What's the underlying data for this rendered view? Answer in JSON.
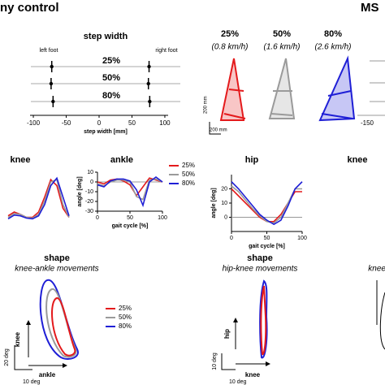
{
  "headers": [
    "ny control",
    "MS"
  ],
  "colors": [
    "#e41a1c",
    "#9a9a9a",
    "#1f1fd6"
  ],
  "step_width": {
    "title": "step width",
    "left_label": "left foot",
    "right_label": "right foot",
    "speeds": [
      "25%",
      "50%",
      "80%"
    ],
    "xlabel": "step width [mm]",
    "xlim": [
      -105,
      105
    ],
    "xticks": [
      -100,
      -50,
      0,
      50,
      100
    ],
    "left_means": [
      -72,
      -73,
      -70
    ],
    "right_means": [
      76,
      75,
      77
    ]
  },
  "speed_legend": {
    "pct": [
      "25%",
      "50%",
      "80%"
    ],
    "kmh": [
      "(0.8 km/h)",
      "(1.6 km/h)",
      "(2.6 km/h)"
    ]
  },
  "scale_labels": [
    "200 mm",
    "200 mm"
  ],
  "ms_xtick": -150,
  "gait": {
    "legend": [
      "25%",
      "50%",
      "80%"
    ],
    "x": [
      0,
      10,
      20,
      30,
      40,
      50,
      60,
      70,
      80,
      90,
      100
    ],
    "panels": [
      {
        "title": "knee",
        "ylim": [
          0,
          70
        ],
        "series": [
          [
            10,
            15,
            12,
            8,
            8,
            15,
            35,
            58,
            50,
            20,
            8
          ],
          [
            8,
            13,
            12,
            8,
            7,
            12,
            30,
            55,
            58,
            25,
            8
          ],
          [
            6,
            11,
            10,
            7,
            6,
            10,
            25,
            50,
            60,
            35,
            10
          ]
        ]
      },
      {
        "title": "ankle",
        "ylabel": "angle [deg]",
        "xlabel": "gait cycle [%]",
        "ylim": [
          -30,
          10
        ],
        "yticks": [
          10,
          0,
          -10,
          -20,
          -30
        ],
        "xlim": [
          0,
          100
        ],
        "xticks": [
          0,
          50,
          100
        ],
        "series": [
          [
            0,
            -2,
            2,
            3,
            1,
            -3,
            -14,
            -5,
            4,
            2,
            0
          ],
          [
            -2,
            -4,
            0,
            2,
            2,
            0,
            -15,
            -18,
            2,
            3,
            0
          ],
          [
            -3,
            -5,
            1,
            3,
            3,
            1,
            -8,
            -24,
            0,
            5,
            0
          ]
        ]
      },
      {
        "title": "hip",
        "ylabel": "angle [deg]",
        "xlabel": "gait cycle [%]",
        "ylim": [
          -10,
          30
        ],
        "yticks": [
          0,
          10,
          20
        ],
        "xlim": [
          0,
          100
        ],
        "xticks": [
          0,
          50,
          100
        ],
        "series": [
          [
            20,
            15,
            10,
            5,
            0,
            -3,
            -3,
            2,
            10,
            18,
            18
          ],
          [
            22,
            18,
            12,
            6,
            1,
            -3,
            -4,
            0,
            10,
            20,
            20
          ],
          [
            25,
            20,
            14,
            8,
            2,
            -2,
            -5,
            -2,
            8,
            20,
            25
          ]
        ]
      },
      {
        "title": "knee"
      }
    ]
  },
  "shape": {
    "legend": [
      "25%",
      "50%",
      "80%"
    ],
    "panels": [
      {
        "title": "shape",
        "subtitle": "knee-ankle movements",
        "yaxis": "knee",
        "xaxis": "ankle",
        "yscale": "20 deg",
        "xscale": "10 deg"
      },
      {
        "title": "shape",
        "subtitle": "hip-knee movements",
        "yaxis": "hip",
        "xaxis": "knee",
        "yscale": "10 deg",
        "xscale": "10 deg"
      },
      {
        "subtitle": "knee-ankle movements"
      }
    ]
  }
}
